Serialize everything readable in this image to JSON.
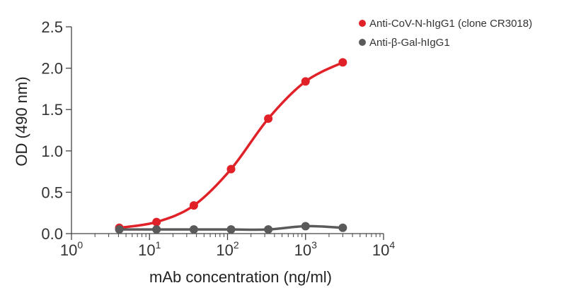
{
  "chart_data": {
    "type": "line",
    "x_scale": "log",
    "xlabel": "mAb concentration (ng/ml)",
    "ylabel": "OD (490 nm)",
    "xlim": [
      1,
      10000
    ],
    "ylim": [
      0,
      2.5
    ],
    "x_ticks": [
      1,
      10,
      100,
      1000,
      10000
    ],
    "x_tick_labels": [
      {
        "base": "10",
        "exp": "0"
      },
      {
        "base": "10",
        "exp": "1"
      },
      {
        "base": "10",
        "exp": "2"
      },
      {
        "base": "10",
        "exp": "3"
      },
      {
        "base": "10",
        "exp": "4"
      }
    ],
    "y_ticks": [
      0,
      0.5,
      1.0,
      1.5,
      2.0,
      2.5
    ],
    "y_tick_labels": [
      "0.0",
      "0.5",
      "1.0",
      "1.5",
      "2.0",
      "2.5"
    ],
    "grid": false,
    "legend_position": "top-right",
    "series": [
      {
        "name": "Anti-CoV-N-hIgG1 (clone CR3018)",
        "color": "#e02228",
        "x": [
          4.1,
          12.3,
          37,
          111,
          333,
          1000,
          3000
        ],
        "y": [
          0.07,
          0.14,
          0.34,
          0.78,
          1.39,
          1.84,
          2.07
        ]
      },
      {
        "name": "Anti-β-Gal-hIgG1",
        "color": "#5a5a5a",
        "x": [
          4.1,
          12.3,
          37,
          111,
          333,
          1000,
          3000
        ],
        "y": [
          0.05,
          0.05,
          0.05,
          0.05,
          0.05,
          0.09,
          0.07
        ]
      }
    ]
  }
}
